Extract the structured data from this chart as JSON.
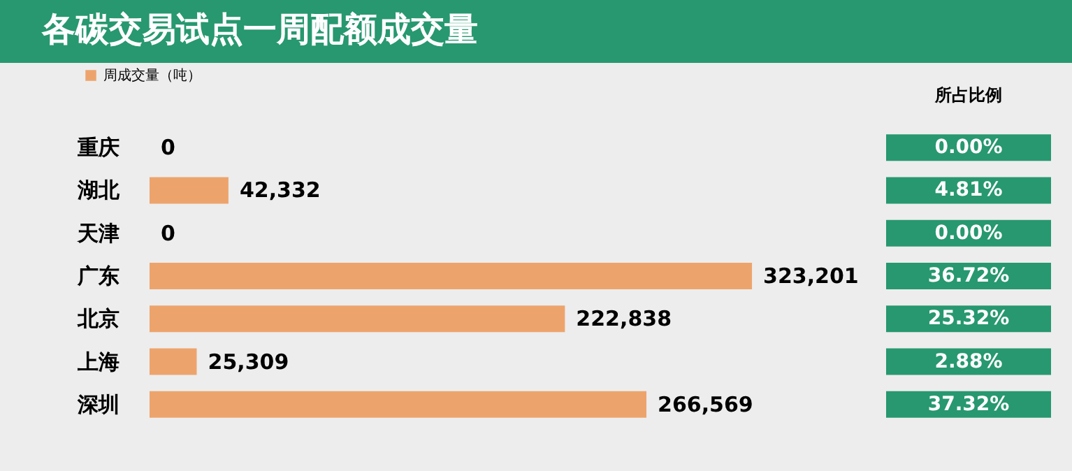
{
  "chart_data": {
    "type": "bar",
    "orientation": "horizontal",
    "title": "各碳交易试点一周配额成交量",
    "categories": [
      "重庆",
      "湖北",
      "天津",
      "广东",
      "北京",
      "上海",
      "深圳"
    ],
    "series": [
      {
        "name": "周成交量（吨）",
        "color": "#eda46c",
        "values": [
          0,
          42332,
          0,
          323201,
          222838,
          25309,
          266569
        ],
        "value_labels": [
          "0",
          "42,332",
          "0",
          "323,201",
          "222,838",
          "25,309",
          "266,569"
        ]
      }
    ],
    "legend": "top left",
    "grid": false,
    "annotations": [
      "所占比例",
      "0.00%",
      "4.81%",
      "0.00%",
      "36.72%",
      "25.32%",
      "2.88%",
      "37.32%"
    ]
  }
}
